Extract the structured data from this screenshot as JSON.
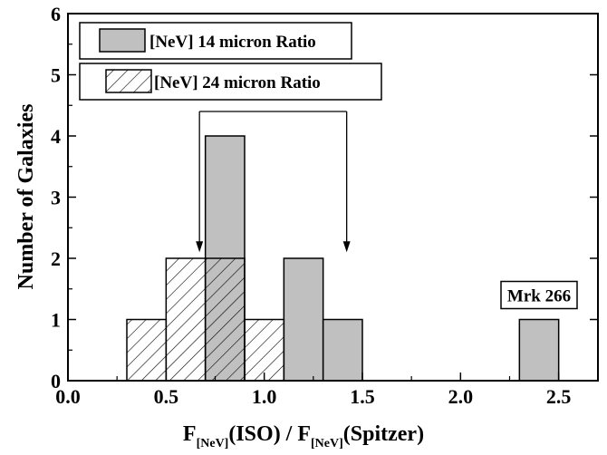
{
  "chart_data": {
    "type": "bar",
    "x_axis": {
      "min": 0,
      "max": 2.7,
      "ticks": [
        "0.0",
        "0.5",
        "1.0",
        "1.5",
        "2.0",
        "2.5"
      ],
      "label_parts": [
        {
          "text": "F",
          "sub": false
        },
        {
          "text": "[NeV]",
          "sub": true
        },
        {
          "text": "(ISO) / F",
          "sub": false
        },
        {
          "text": "[NeV]",
          "sub": true
        },
        {
          "text": "(Spitzer)",
          "sub": false
        }
      ]
    },
    "y_axis": {
      "min": 0,
      "max": 6,
      "ticks": [
        "0",
        "1",
        "2",
        "3",
        "4",
        "5",
        "6"
      ],
      "label": "Number of Galaxies"
    },
    "series": [
      {
        "name": "[NeV] 14 micron Ratio",
        "style": "solid",
        "color": "#c0c0c0",
        "bins": [
          {
            "x0": 0.7,
            "x1": 0.9,
            "count": 4
          },
          {
            "x0": 1.1,
            "x1": 1.3,
            "count": 2
          },
          {
            "x0": 1.3,
            "x1": 1.5,
            "count": 1
          },
          {
            "x0": 2.3,
            "x1": 2.5,
            "count": 1
          }
        ]
      },
      {
        "name": "[NeV] 24 micron Ratio",
        "style": "hatched",
        "color": "#000000",
        "bins": [
          {
            "x0": 0.3,
            "x1": 0.5,
            "count": 1
          },
          {
            "x0": 0.5,
            "x1": 0.7,
            "count": 2
          },
          {
            "x0": 0.7,
            "x1": 0.9,
            "count": 2
          },
          {
            "x0": 0.9,
            "x1": 1.1,
            "count": 1
          }
        ]
      }
    ],
    "mean_markers": {
      "bar_y": 4.4,
      "arrow_to_y": 2.1,
      "markers": [
        {
          "series": "[NeV] 24 micron Ratio",
          "x": 0.67
        },
        {
          "series": "[NeV] 14 micron Ratio",
          "x": 1.42
        }
      ]
    },
    "annotations": [
      {
        "text": "Mrk 266",
        "x": 2.4,
        "y": 1.4
      }
    ],
    "legend": "top-left"
  }
}
